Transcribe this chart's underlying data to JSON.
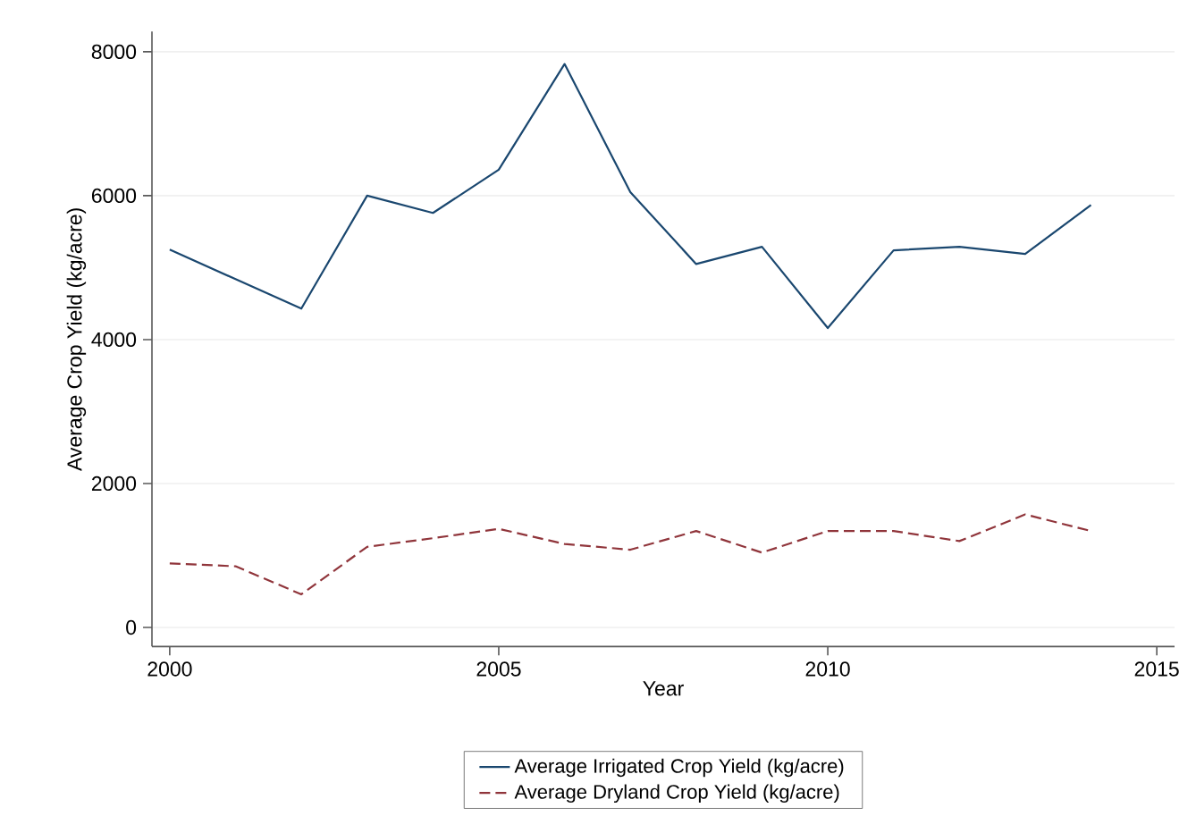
{
  "chart_data": {
    "type": "line",
    "xlabel": "Year",
    "ylabel": "Average Crop Yield (kg/acre)",
    "x": [
      2000,
      2001,
      2002,
      2003,
      2004,
      2005,
      2006,
      2007,
      2008,
      2009,
      2010,
      2011,
      2012,
      2013,
      2014
    ],
    "series": [
      {
        "name": "Average Irrigated Crop Yield (kg/acre)",
        "color": "#1a476f",
        "line_style": "solid",
        "values": [
          5250,
          4840,
          4430,
          6000,
          5760,
          6360,
          7830,
          6050,
          5050,
          5290,
          4160,
          5240,
          5290,
          5190,
          5870
        ]
      },
      {
        "name": "Average Dryland Crop Yield (kg/acre)",
        "color": "#90353b",
        "line_style": "dashed",
        "values": [
          890,
          850,
          460,
          1120,
          1240,
          1370,
          1160,
          1080,
          1340,
          1040,
          1340,
          1340,
          1200,
          1570,
          1340
        ]
      }
    ],
    "xlim": [
      1999.73,
      2015.27
    ],
    "ylim": [
      -265,
      8280
    ],
    "xticks": [
      2000,
      2005,
      2010,
      2015
    ],
    "yticks": [
      0,
      2000,
      4000,
      6000,
      8000
    ],
    "grid": "y",
    "legend": "bottom",
    "marker": "none"
  }
}
